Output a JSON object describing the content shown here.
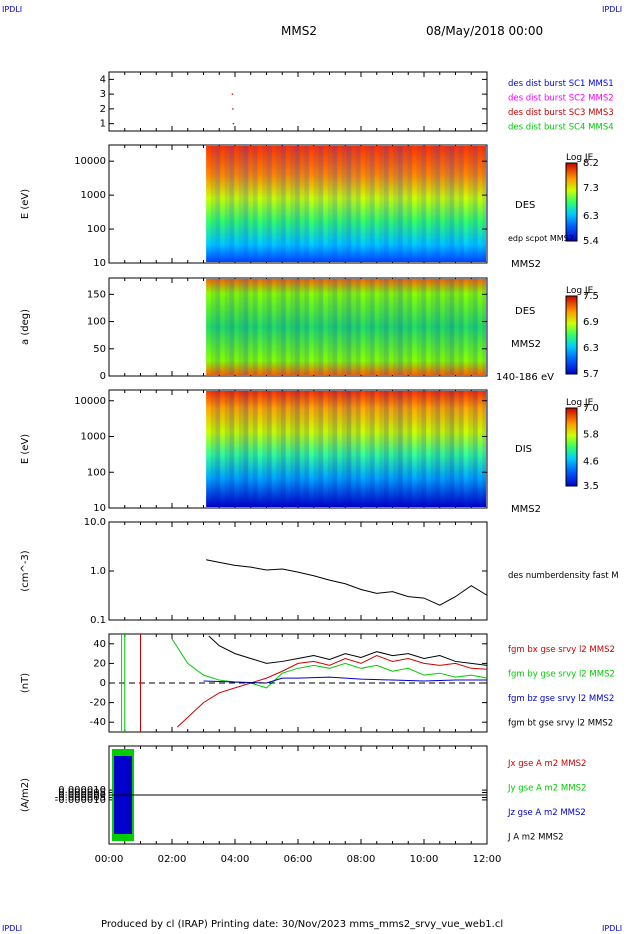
{
  "corner_labels": {
    "tl": "IPDLI",
    "tr": "IPDLI",
    "bl": "IPDLI",
    "br": "IPDLI"
  },
  "header": {
    "spacecraft": "MMS2",
    "datetime": "08/May/2018 00:00"
  },
  "footer": {
    "text": "Produced by cl (IRAP)   Printing date: 30/Nov/2023   mms_mms2_srvy_vue_web1.cl"
  },
  "colors": {
    "c1": "#0000ff",
    "c2": "#ff00ff",
    "c3": "#cc0000",
    "c4": "#00cc00",
    "bx": "#cc0000",
    "by": "#00cc00",
    "bz": "#0000cc",
    "bt": "#000000"
  },
  "chart_data": [
    {
      "type": "scatter",
      "id": "panel1",
      "yticks": [
        "1",
        "2",
        "3",
        "4"
      ],
      "ylim": [
        0.5,
        4.5
      ],
      "legend": [
        {
          "label": "des dist burst SC1 MMS1",
          "color": "#0000ff"
        },
        {
          "label": "des dist burst SC2 MMS2",
          "color": "#ff00ff"
        },
        {
          "label": "des dist burst SC3 MMS3",
          "color": "#cc0000"
        },
        {
          "label": "des dist burst SC4 MMS4",
          "color": "#00cc00"
        }
      ],
      "points": [
        {
          "x": "03:55",
          "y": 3
        },
        {
          "x": "03:56",
          "y": 2
        },
        {
          "x": "03:57",
          "y": 1
        }
      ]
    },
    {
      "type": "heatmap",
      "id": "panel2",
      "ylabel": "E (eV)",
      "yscale": "log",
      "ylim": [
        10,
        30000
      ],
      "yticks": [
        "10",
        "100",
        "1000",
        "10000"
      ],
      "labels": [
        "DES",
        "edp scpot MMS2",
        "MMS2"
      ],
      "colorbar": {
        "title": "Log JE",
        "ticks": [
          "8.2",
          "7.3",
          "6.3",
          "5.4"
        ],
        "range": [
          5.4,
          8.2
        ]
      },
      "data_start": "03:05"
    },
    {
      "type": "heatmap",
      "id": "panel3",
      "ylabel": "a (deg)",
      "ylim": [
        0,
        180
      ],
      "yticks": [
        "0",
        "50",
        "100",
        "150"
      ],
      "labels": [
        "DES",
        "MMS2",
        "140-186 eV"
      ],
      "colorbar": {
        "title": "Log JE",
        "ticks": [
          "7.5",
          "6.9",
          "6.3",
          "5.7"
        ],
        "range": [
          5.7,
          7.5
        ]
      },
      "data_start": "03:05"
    },
    {
      "type": "heatmap",
      "id": "panel4",
      "ylabel": "E (eV)",
      "yscale": "log",
      "ylim": [
        10,
        20000
      ],
      "yticks": [
        "10",
        "100",
        "1000",
        "10000"
      ],
      "labels": [
        "DIS",
        "MMS2"
      ],
      "colorbar": {
        "title": "Log JE",
        "ticks": [
          "7.0",
          "5.8",
          "4.6",
          "3.5"
        ],
        "range": [
          3.5,
          7.0
        ]
      },
      "data_start": "03:05"
    },
    {
      "type": "line",
      "id": "panel5",
      "ylabel": "(cm^-3)",
      "yscale": "log",
      "ylim": [
        0.1,
        10
      ],
      "yticks": [
        "0.1",
        "1.0",
        "10.0"
      ],
      "series": [
        {
          "name": "des numberdensity fast M",
          "color": "#000000",
          "x": [
            "03:05",
            "03:30",
            "04:00",
            "04:30",
            "05:00",
            "05:30",
            "06:00",
            "06:30",
            "07:00",
            "07:30",
            "08:00",
            "08:30",
            "09:00",
            "09:30",
            "10:00",
            "10:30",
            "11:00",
            "11:30",
            "12:00"
          ],
          "y": [
            1.7,
            1.5,
            1.3,
            1.2,
            1.05,
            1.1,
            0.95,
            0.8,
            0.65,
            0.55,
            0.42,
            0.35,
            0.38,
            0.3,
            0.28,
            0.2,
            0.3,
            0.5,
            0.32
          ]
        }
      ]
    },
    {
      "type": "line",
      "id": "panel6",
      "ylabel": "(nT)",
      "ylim": [
        -50,
        50
      ],
      "yticks": [
        "-40",
        "-20",
        "0",
        "20",
        "40"
      ],
      "series": [
        {
          "name": "fgm bx gse srvy l2 MMS2",
          "color": "#cc0000",
          "x": [
            "02:10",
            "03:00",
            "03:30",
            "04:00",
            "04:30",
            "05:00",
            "05:30",
            "06:00",
            "06:30",
            "07:00",
            "07:30",
            "08:00",
            "08:30",
            "09:00",
            "09:30",
            "10:00",
            "10:30",
            "11:00",
            "11:30",
            "12:00"
          ],
          "y": [
            -45,
            -20,
            -10,
            -5,
            0,
            5,
            12,
            20,
            22,
            18,
            25,
            20,
            28,
            22,
            25,
            20,
            18,
            20,
            15,
            14
          ]
        },
        {
          "name": "fgm by gse srvy l2 MMS2",
          "color": "#00cc00",
          "x": [
            "02:00",
            "02:30",
            "03:00",
            "03:30",
            "04:00",
            "04:30",
            "05:00",
            "05:30",
            "06:00",
            "06:30",
            "07:00",
            "07:30",
            "08:00",
            "08:30",
            "09:00",
            "09:30",
            "10:00",
            "10:30",
            "11:00",
            "11:30",
            "12:00"
          ],
          "y": [
            45,
            20,
            8,
            3,
            1,
            0,
            -5,
            10,
            15,
            18,
            15,
            20,
            15,
            18,
            12,
            15,
            8,
            10,
            6,
            8,
            5
          ]
        },
        {
          "name": "fgm bz gse srvy l2 MMS2",
          "color": "#0000cc",
          "x": [
            "03:00",
            "04:00",
            "05:00",
            "05:30",
            "06:00",
            "07:00",
            "08:00",
            "09:00",
            "10:00",
            "11:00",
            "12:00"
          ],
          "y": [
            2,
            1,
            0,
            5,
            5,
            6,
            4,
            3,
            2,
            3,
            3
          ]
        },
        {
          "name": "fgm bt gse srvy l2 MMS2",
          "color": "#000000",
          "x": [
            "03:10",
            "03:30",
            "04:00",
            "04:30",
            "05:00",
            "05:30",
            "06:00",
            "06:30",
            "07:00",
            "07:30",
            "08:00",
            "08:30",
            "09:00",
            "09:30",
            "10:00",
            "10:30",
            "11:00",
            "11:30",
            "12:00"
          ],
          "y": [
            48,
            38,
            30,
            25,
            20,
            22,
            25,
            28,
            24,
            30,
            26,
            32,
            28,
            30,
            25,
            28,
            22,
            20,
            18
          ]
        }
      ]
    },
    {
      "type": "line",
      "id": "panel7",
      "ylabel": "(A/m2)",
      "ylim": [
        -0.0001,
        0.0001
      ],
      "yticks": [
        "-0.000010",
        "-0.000005",
        "0.000000",
        "0.000005",
        "0.000010"
      ],
      "series": [
        {
          "name": "Jx gse A m2 MMS2",
          "color": "#cc0000"
        },
        {
          "name": "Jy gse A m2 MMS2",
          "color": "#00cc00"
        },
        {
          "name": "Jz gse A m2 MMS2",
          "color": "#0000cc"
        },
        {
          "name": "J A m2 MMS2",
          "color": "#000000"
        }
      ]
    }
  ],
  "x_axis": {
    "ticks": [
      "00:00",
      "02:00",
      "04:00",
      "06:00",
      "08:00",
      "10:00",
      "12:00"
    ],
    "range": [
      "00:00",
      "12:00"
    ]
  }
}
